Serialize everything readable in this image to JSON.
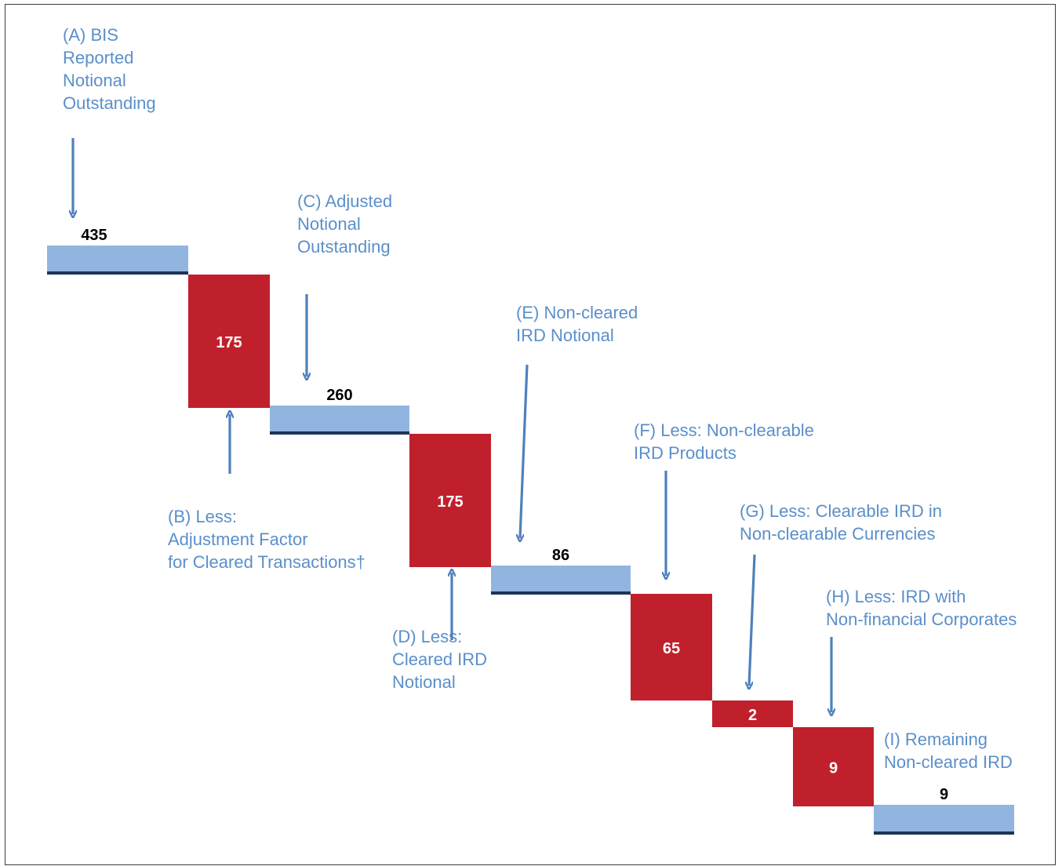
{
  "chart_data": {
    "type": "bar",
    "subtype": "waterfall",
    "title": "",
    "xlabel": "",
    "ylabel": "",
    "colors": {
      "total": "#92b5e0",
      "total_edge": "#1c3556",
      "decrease": "#c0202b",
      "label_text": "#5b8fc9",
      "arrow": "#4e81bd"
    },
    "steps": [
      {
        "id": "A",
        "kind": "total",
        "value": 435,
        "label": [
          "(A) BIS",
          "Reported",
          "Notional",
          "Outstanding"
        ]
      },
      {
        "id": "B",
        "kind": "decrease",
        "value": 175,
        "label": [
          "(B) Less:",
          "Adjustment Factor",
          "for Cleared Transactions†"
        ]
      },
      {
        "id": "C",
        "kind": "total",
        "value": 260,
        "label": [
          "(C) Adjusted",
          "Notional",
          "Outstanding"
        ]
      },
      {
        "id": "D",
        "kind": "decrease",
        "value": 175,
        "label": [
          "(D) Less:",
          "Cleared IRD",
          "Notional"
        ]
      },
      {
        "id": "E",
        "kind": "total",
        "value": 86,
        "label": [
          "(E) Non-cleared",
          "IRD Notional"
        ]
      },
      {
        "id": "F",
        "kind": "decrease",
        "value": 65,
        "label": [
          "(F) Less: Non-clearable",
          "IRD Products"
        ]
      },
      {
        "id": "G",
        "kind": "decrease",
        "value": 2,
        "label": [
          "(G) Less: Clearable IRD in",
          "Non-clearable Currencies"
        ]
      },
      {
        "id": "H",
        "kind": "decrease",
        "value": 9,
        "label": [
          "(H) Less: IRD with",
          "Non-financial Corporates"
        ]
      },
      {
        "id": "I",
        "kind": "total",
        "value": 9,
        "label": [
          "(I) Remaining",
          "Non-cleared IRD"
        ]
      }
    ]
  }
}
